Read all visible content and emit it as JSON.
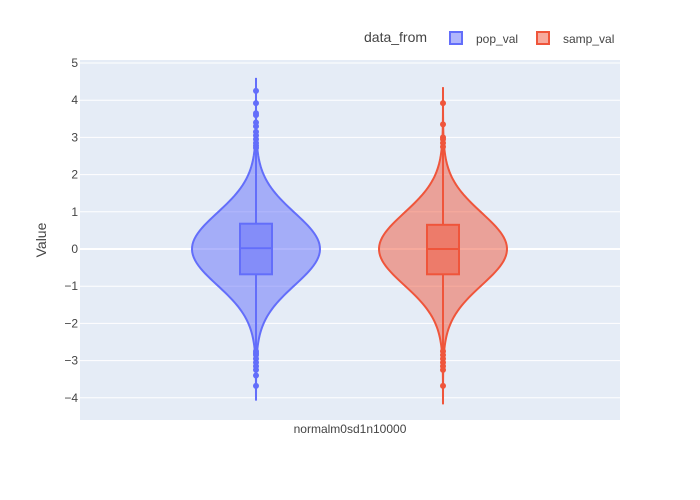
{
  "chart_data": {
    "type": "violin",
    "title": "",
    "xlabel": "",
    "ylabel": "Value",
    "ylim": [
      -4.5,
      5.1
    ],
    "yticks": [
      5,
      4,
      3,
      2,
      1,
      0,
      -1,
      -2,
      -3,
      -4
    ],
    "ytick_labels": [
      "5",
      "4",
      "3",
      "2",
      "1",
      "0",
      "−1",
      "−2",
      "−3",
      "−4"
    ],
    "category": "normalm0sd1n10000",
    "legend": {
      "title": "data_from",
      "position": "top-right"
    },
    "grid": true,
    "plot_bg": "#e5ecf6",
    "series": [
      {
        "name": "pop_val",
        "color": "#636efa",
        "fill": "rgba(99,110,250,0.5)",
        "q1": -0.68,
        "median": 0.02,
        "q3": 0.68,
        "whisker_low": -2.7,
        "whisker_high": 2.68,
        "kde_min": -4.05,
        "kde_max": 4.6,
        "outliers": [
          4.25,
          3.92,
          3.65,
          3.6,
          3.4,
          3.3,
          3.15,
          3.05,
          2.95,
          2.85,
          2.78,
          2.72,
          -2.75,
          -2.8,
          -2.85,
          -2.95,
          -3.05,
          -3.15,
          -3.25,
          -3.4,
          -3.68
        ]
      },
      {
        "name": "samp_val",
        "color": "#ef553b",
        "fill": "rgba(239,85,59,0.5)",
        "q1": -0.68,
        "median": 0.0,
        "q3": 0.65,
        "whisker_low": -2.7,
        "whisker_high": 2.68,
        "kde_min": -4.15,
        "kde_max": 4.35,
        "outliers": [
          3.92,
          3.35,
          3.0,
          2.95,
          2.85,
          2.75,
          -2.75,
          -2.85,
          -2.95,
          -3.05,
          -3.15,
          -3.25,
          -3.68
        ]
      }
    ]
  }
}
